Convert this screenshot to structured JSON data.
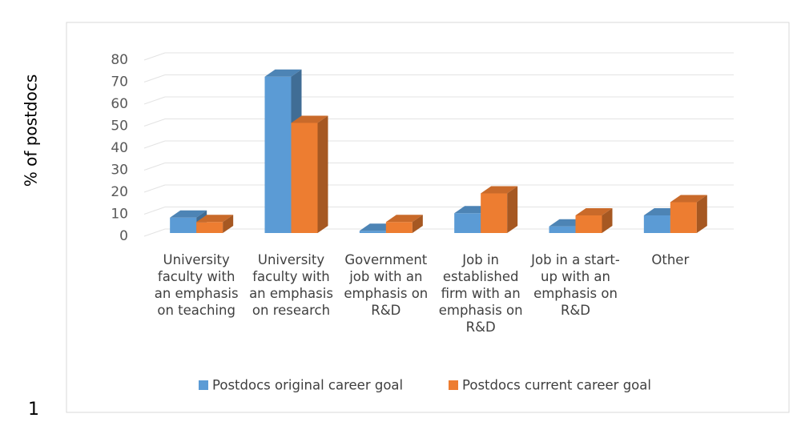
{
  "chart_data": {
    "type": "bar3d",
    "y_label": "% of postdocs",
    "page_number": "1",
    "categories": [
      "University faculty with an emphasis on teaching",
      "University faculty with an emphasis on research",
      "Government job with an emphasis on R&D",
      "Job in established firm with an emphasis on R&D",
      "Job in a start-up with an emphasis on R&D",
      "Other"
    ],
    "series": [
      {
        "name": "Postdocs original career goal",
        "color": "#5b9bd5",
        "values": [
          7,
          71,
          1,
          9,
          3,
          8
        ]
      },
      {
        "name": "Postdocs current career goal",
        "color": "#ed7d31",
        "values": [
          5,
          50,
          5,
          18,
          8,
          14
        ]
      }
    ],
    "ylim": [
      0,
      80
    ],
    "yticks": [
      0,
      10,
      20,
      30,
      40,
      50,
      60,
      70,
      80
    ],
    "grid": true
  }
}
